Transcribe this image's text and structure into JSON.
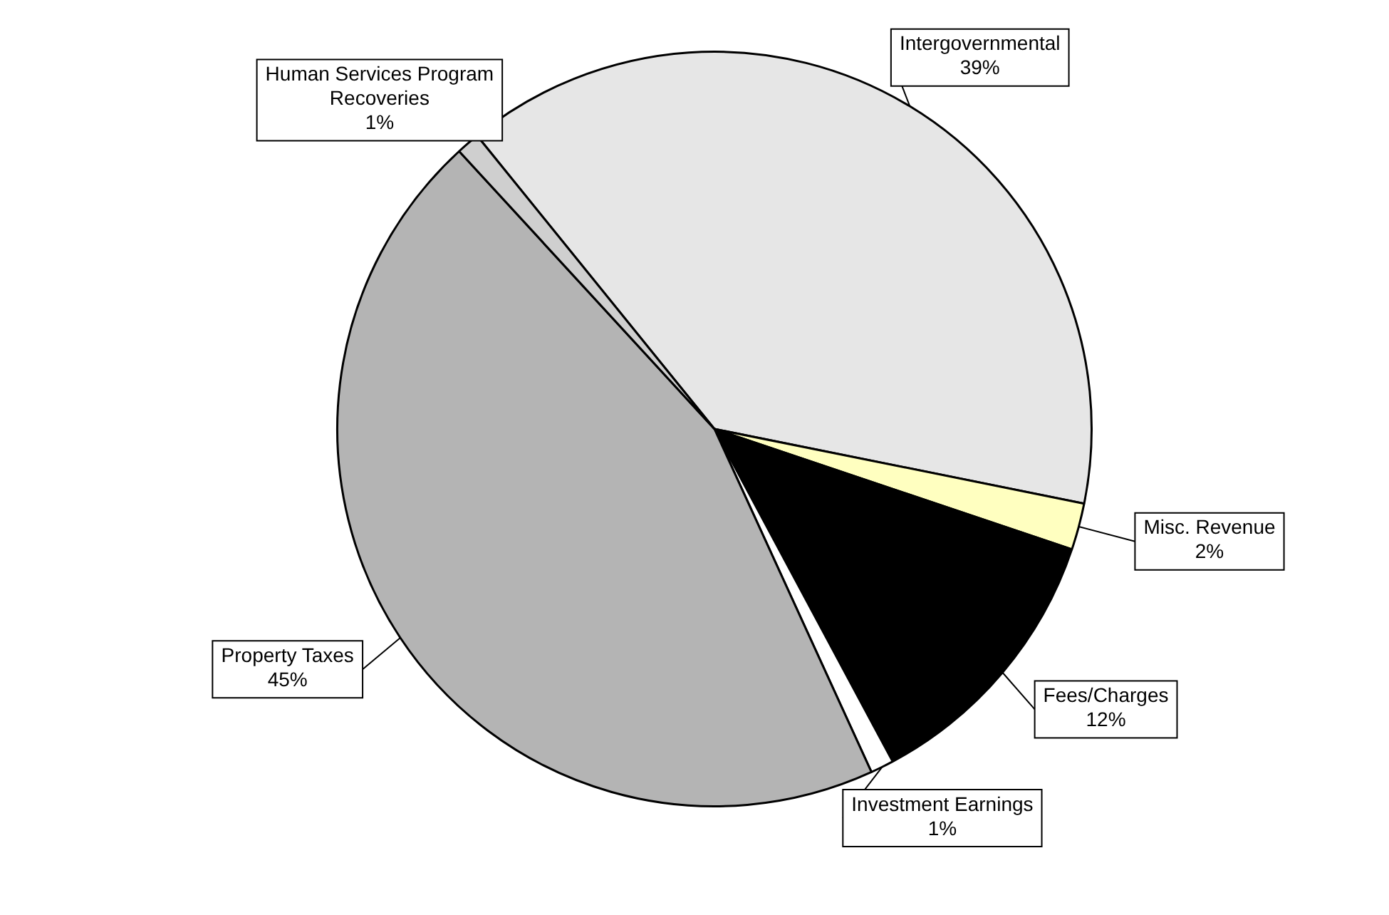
{
  "chart_data": {
    "type": "pie",
    "categories": [
      "Intergovernmental",
      "Misc. Revenue",
      "Fees/Charges",
      "Investment Earnings",
      "Property Taxes",
      "Human Services Program Recoveries"
    ],
    "values": [
      39,
      2,
      12,
      1,
      45,
      1
    ],
    "colors": [
      "#e6e6e6",
      "#ffffc0",
      "#000000",
      "#ffffff",
      "#b4b4b4",
      "#cfcfcf"
    ],
    "value_labels": [
      "39%",
      "2%",
      "12%",
      "1%",
      "45%",
      "1%"
    ]
  }
}
